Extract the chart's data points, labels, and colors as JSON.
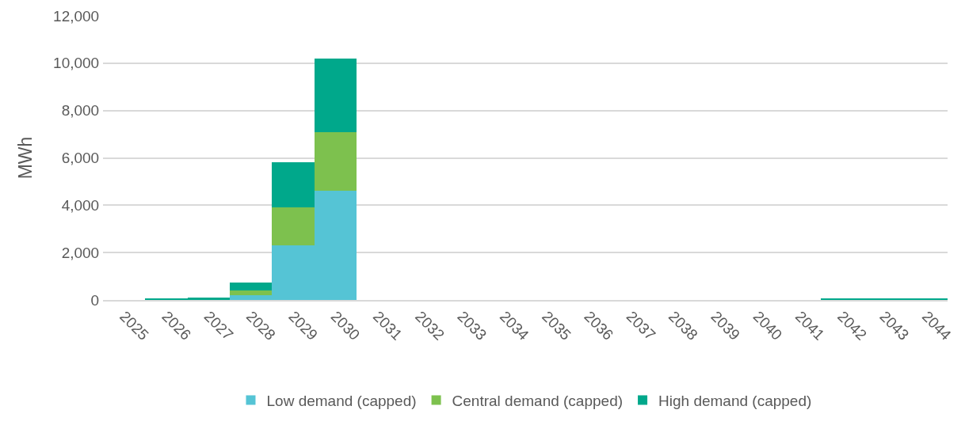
{
  "chart_data": {
    "type": "bar",
    "stacked": true,
    "ylabel": "MWh",
    "categories": [
      "2025",
      "2026",
      "2027",
      "2028",
      "2029",
      "2030",
      "2031",
      "2032",
      "2033",
      "2034",
      "2035",
      "2036",
      "2037",
      "2038",
      "2039",
      "2040",
      "2041",
      "2042",
      "2043",
      "2044"
    ],
    "series": [
      {
        "name": "Low demand (capped)",
        "color": "#55c4d5",
        "values": [
          0,
          null,
          null,
          200,
          2300,
          4600,
          0,
          0,
          0,
          0,
          0,
          0,
          0,
          0,
          0,
          0,
          0,
          null,
          null,
          null
        ]
      },
      {
        "name": "Central demand (capped)",
        "color": "#7dc14e",
        "values": [
          0,
          null,
          null,
          200,
          1600,
          2500,
          0,
          0,
          0,
          0,
          0,
          0,
          0,
          0,
          0,
          0,
          0,
          null,
          null,
          null
        ]
      },
      {
        "name": "High demand (capped)",
        "color": "#00a88b",
        "values": [
          0,
          60,
          100,
          350,
          1900,
          3100,
          0,
          0,
          0,
          0,
          0,
          0,
          0,
          0,
          0,
          0,
          0,
          50,
          50,
          50
        ]
      }
    ],
    "ylim": [
      0,
      12000
    ],
    "yticks": [
      {
        "value": 0,
        "label": "0"
      },
      {
        "value": 2000,
        "label": "2,000"
      },
      {
        "value": 4000,
        "label": "4,000"
      },
      {
        "value": 6000,
        "label": "6,000"
      },
      {
        "value": 8000,
        "label": "8,000"
      },
      {
        "value": 10000,
        "label": "10,000"
      },
      {
        "value": 12000,
        "label": "12,000"
      }
    ],
    "grid": "y",
    "legend": "bottom"
  }
}
